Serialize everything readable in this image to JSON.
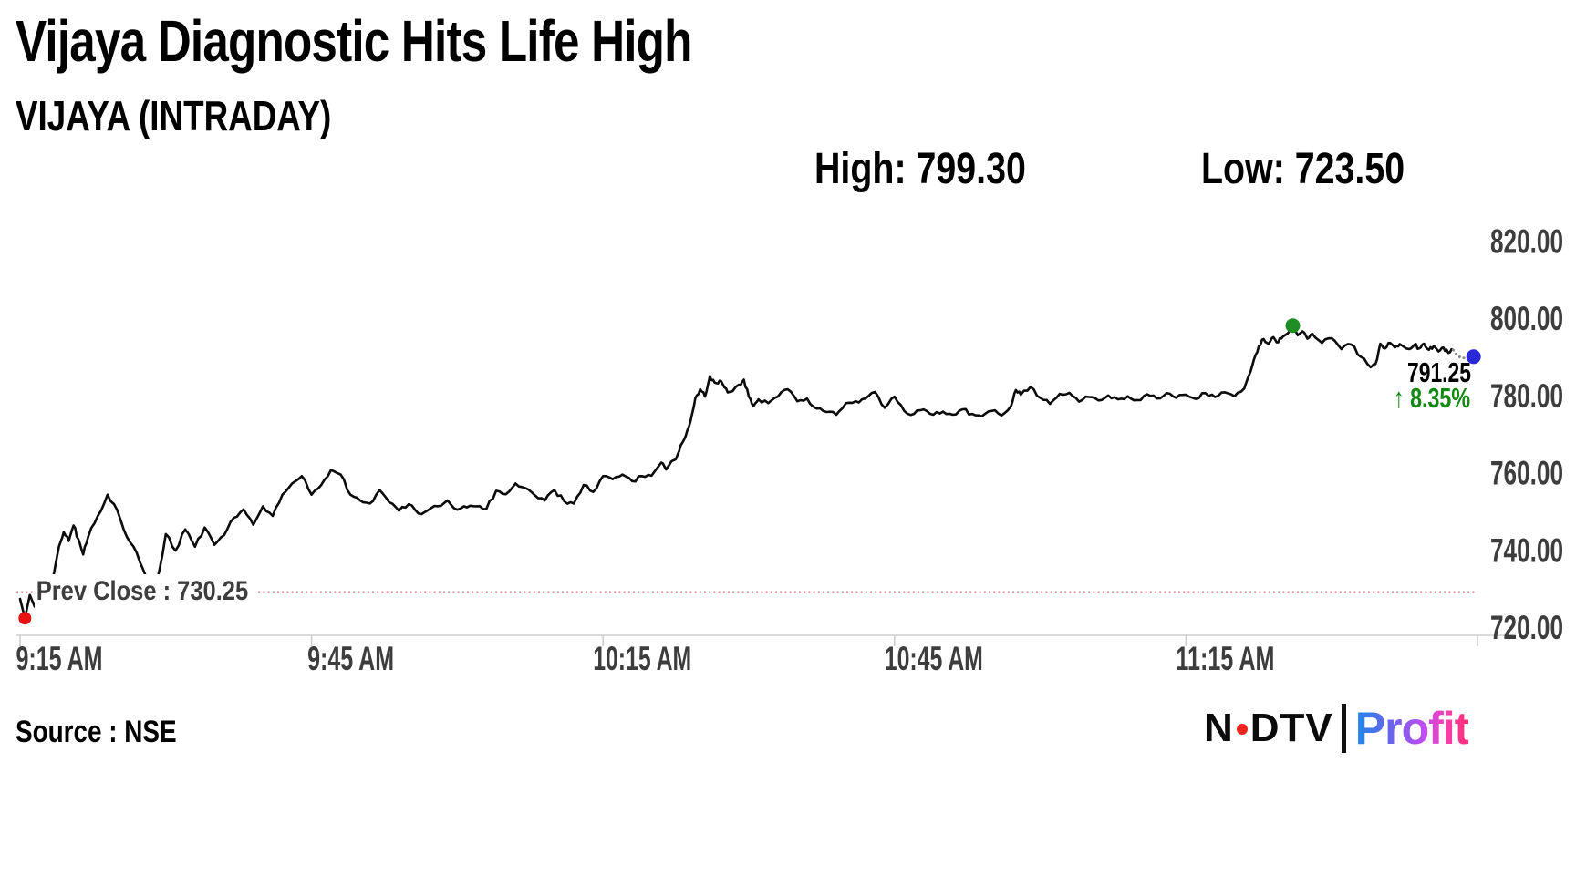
{
  "header": {
    "title": "Vijaya Diagnostic Hits Life High",
    "subtitle": "VIJAYA (INTRADAY)"
  },
  "stats": {
    "high": "High: 799.30",
    "low": "Low: 723.50"
  },
  "chart_data": {
    "type": "line",
    "title": "VIJAYA (INTRADAY)",
    "x_unit": "minutes since 9:15 AM",
    "ylim": [
      720,
      820
    ],
    "grid": false,
    "legend": "none",
    "y_ticks": [
      {
        "v": 820,
        "label": "820.00"
      },
      {
        "v": 800,
        "label": "800.00"
      },
      {
        "v": 780,
        "label": "780.00"
      },
      {
        "v": 760,
        "label": "760.00"
      },
      {
        "v": 740,
        "label": "740.00"
      },
      {
        "v": 720,
        "label": "720.00"
      }
    ],
    "x_ticks": [
      {
        "t": 0,
        "label": "9:15 AM"
      },
      {
        "t": 30,
        "label": "9:45 AM"
      },
      {
        "t": 60,
        "label": "10:15 AM"
      },
      {
        "t": 90,
        "label": "10:45 AM"
      },
      {
        "t": 120,
        "label": "11:15 AM"
      },
      {
        "t": 150,
        "label": ""
      }
    ],
    "prev_close": 730.25,
    "prev_close_label": "Prev Close : 730.25",
    "session_high": 799.3,
    "session_low": 723.5,
    "last_price": 791.25,
    "change_pct": "8.35%",
    "series": [
      {
        "name": "VIJAYA intraday price",
        "points": [
          [
            0,
            728.5
          ],
          [
            0.5,
            723.5
          ],
          [
            1,
            729.5
          ],
          [
            1.5,
            726.5
          ],
          [
            2,
            731
          ],
          [
            3,
            728
          ],
          [
            4,
            742
          ],
          [
            4.5,
            745.8
          ],
          [
            5,
            743.5
          ],
          [
            5.5,
            747.5
          ],
          [
            6,
            744
          ],
          [
            6.5,
            740
          ],
          [
            7,
            744.5
          ],
          [
            8,
            750
          ],
          [
            9,
            755.5
          ],
          [
            10,
            751.5
          ],
          [
            11,
            744.5
          ],
          [
            12,
            740.5
          ],
          [
            13,
            734
          ],
          [
            14,
            731.8
          ],
          [
            14.5,
            738
          ],
          [
            15,
            745.3
          ],
          [
            16,
            741
          ],
          [
            17,
            746.5
          ],
          [
            18,
            742
          ],
          [
            19,
            747
          ],
          [
            20,
            742.5
          ],
          [
            21,
            745
          ],
          [
            22,
            749.5
          ],
          [
            23,
            751.7
          ],
          [
            24,
            747.7
          ],
          [
            25,
            752.5
          ],
          [
            26,
            750
          ],
          [
            27,
            755.5
          ],
          [
            28,
            758.4
          ],
          [
            29,
            760.3
          ],
          [
            30,
            755.5
          ],
          [
            31,
            758
          ],
          [
            32,
            761.9
          ],
          [
            33,
            760.7
          ],
          [
            34,
            755.5
          ],
          [
            35,
            754
          ],
          [
            36,
            753.2
          ],
          [
            37,
            756.7
          ],
          [
            38,
            753.5
          ],
          [
            39,
            751.3
          ],
          [
            40,
            753
          ],
          [
            41,
            750.6
          ],
          [
            42,
            751.5
          ],
          [
            43,
            752.5
          ],
          [
            44,
            754
          ],
          [
            45,
            751.6
          ],
          [
            46,
            752.2
          ],
          [
            47,
            752.5
          ],
          [
            48,
            751.8
          ],
          [
            49,
            756.5
          ],
          [
            50,
            755.6
          ],
          [
            51,
            758.4
          ],
          [
            52,
            757.2
          ],
          [
            53,
            755.3
          ],
          [
            54,
            754
          ],
          [
            55,
            756.7
          ],
          [
            56,
            753.8
          ],
          [
            57,
            753.2
          ],
          [
            58,
            758
          ],
          [
            59,
            756.2
          ],
          [
            60,
            760.3
          ],
          [
            61,
            759.5
          ],
          [
            62,
            760.7
          ],
          [
            63,
            759
          ],
          [
            64,
            760.3
          ],
          [
            65,
            760.4
          ],
          [
            66,
            763.8
          ],
          [
            66.5,
            762
          ],
          [
            67,
            764
          ],
          [
            67.5,
            764.7
          ],
          [
            68,
            768.3
          ],
          [
            68.5,
            770.6
          ],
          [
            69,
            774.5
          ],
          [
            69.5,
            780.5
          ],
          [
            70,
            782.8
          ],
          [
            70.5,
            780.9
          ],
          [
            71,
            786.2
          ],
          [
            71.5,
            784.5
          ],
          [
            72,
            785
          ],
          [
            72.5,
            783.3
          ],
          [
            73,
            782.1
          ],
          [
            74,
            784
          ],
          [
            74.5,
            785.3
          ],
          [
            75,
            780.9
          ],
          [
            75.5,
            778.5
          ],
          [
            76,
            780.2
          ],
          [
            77,
            779.2
          ],
          [
            78,
            780.9
          ],
          [
            79,
            782.8
          ],
          [
            80,
            779.7
          ],
          [
            81,
            780.4
          ],
          [
            82,
            777.8
          ],
          [
            83,
            776.9
          ],
          [
            84,
            776.2
          ],
          [
            85,
            779.2
          ],
          [
            86,
            779.7
          ],
          [
            87,
            780.4
          ],
          [
            88,
            782.1
          ],
          [
            89,
            778
          ],
          [
            90,
            780.9
          ],
          [
            91,
            777.2
          ],
          [
            92,
            776.4
          ],
          [
            93,
            777.6
          ],
          [
            94,
            776.2
          ],
          [
            95,
            777
          ],
          [
            96,
            776.2
          ],
          [
            97,
            777.6
          ],
          [
            98,
            776.4
          ],
          [
            99,
            775.8
          ],
          [
            100,
            777.2
          ],
          [
            101,
            776
          ],
          [
            102,
            778.5
          ],
          [
            102.5,
            782.6
          ],
          [
            103,
            781.4
          ],
          [
            104,
            783.4
          ],
          [
            105,
            780.6
          ],
          [
            106,
            779
          ],
          [
            107,
            781.6
          ],
          [
            108,
            781.9
          ],
          [
            109,
            779.6
          ],
          [
            110,
            780.8
          ],
          [
            111,
            779.9
          ],
          [
            112,
            781.2
          ],
          [
            113,
            780.2
          ],
          [
            114,
            781
          ],
          [
            115,
            780
          ],
          [
            116,
            781.5
          ],
          [
            117,
            780.4
          ],
          [
            118,
            781.8
          ],
          [
            119,
            780.6
          ],
          [
            120,
            781.4
          ],
          [
            121,
            780.3
          ],
          [
            122,
            781.8
          ],
          [
            123,
            780.8
          ],
          [
            124,
            782
          ],
          [
            125,
            781
          ],
          [
            126,
            783
          ],
          [
            126.5,
            786.5
          ],
          [
            127,
            790.5
          ],
          [
            127.5,
            794
          ],
          [
            128,
            795.8
          ],
          [
            128.5,
            794.6
          ],
          [
            129,
            796.3
          ],
          [
            129.5,
            795
          ],
          [
            130,
            796.5
          ],
          [
            130.5,
            797.3
          ],
          [
            131,
            799.3
          ],
          [
            131.5,
            796.8
          ],
          [
            132,
            797.8
          ],
          [
            132.5,
            795.9
          ],
          [
            133,
            797.2
          ],
          [
            134,
            794.8
          ],
          [
            135,
            796
          ],
          [
            136,
            793.2
          ],
          [
            137,
            794.4
          ],
          [
            138,
            791.2
          ],
          [
            139,
            788.5
          ],
          [
            139.5,
            789.3
          ],
          [
            140,
            794.6
          ],
          [
            140.5,
            793.4
          ],
          [
            141,
            794.8
          ],
          [
            141.5,
            793.6
          ],
          [
            142,
            794.5
          ],
          [
            143,
            793.2
          ],
          [
            143.5,
            794.3
          ],
          [
            144,
            793.4
          ],
          [
            144.5,
            794.6
          ],
          [
            145,
            793
          ],
          [
            145.5,
            794
          ],
          [
            146,
            792.6
          ],
          [
            146.5,
            793.6
          ],
          [
            147,
            792.2
          ],
          [
            147.5,
            793
          ],
          [
            148,
            791.8
          ],
          [
            148.5,
            791
          ],
          [
            149,
            790.5
          ],
          [
            149.6,
            791.25
          ]
        ]
      }
    ],
    "solid_until": 147.5,
    "markers": [
      {
        "type": "session-low-dot",
        "t": 0.5,
        "v": 723.5,
        "color": "#e81212",
        "r": 7
      },
      {
        "type": "session-high-dot",
        "t": 131,
        "v": 799.3,
        "color": "#1e8e24",
        "r": 8
      },
      {
        "type": "last-trade-dot",
        "t": 149.6,
        "v": 791.25,
        "color": "#2929d8",
        "r": 8
      }
    ],
    "annotations": {
      "last_price": "791.25",
      "arrow": "↑",
      "change_pct": "8.35%",
      "last_price_color": "#000000",
      "change_color": "#128912"
    },
    "line_color": "#0b0b0b",
    "tail_dot_color": "#8a8a8a",
    "prev_close_line_color": "#c96070",
    "axis_color": "#cfcfcf",
    "axis_text_color": "#3d3d3d"
  },
  "footer": {
    "source": "Source : NSE",
    "logo": {
      "n": "N",
      "dtv": "DTV",
      "profit": "Profit",
      "dot_color": "#e8261d",
      "profit_gradient": [
        "#1e88e5",
        "#7a5cf0",
        "#c44df0",
        "#ff3da0",
        "#ff2d78"
      ]
    }
  }
}
